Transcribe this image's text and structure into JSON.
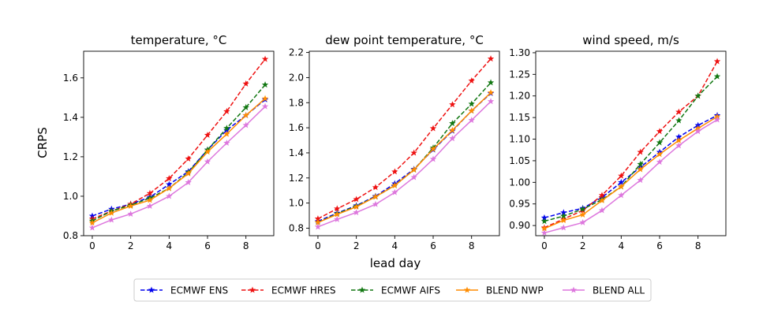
{
  "figure": {
    "ylabel": "CRPS",
    "xlabel": "lead day"
  },
  "legend": {
    "placement": "bottom-center",
    "entries": [
      {
        "name": "ECMWF ENS",
        "color": "#0000ee",
        "dashed": true
      },
      {
        "name": "ECMWF HRES",
        "color": "#ee1111",
        "dashed": true
      },
      {
        "name": "ECMWF AIFS",
        "color": "#117711",
        "dashed": true
      },
      {
        "name": "BLEND NWP",
        "color": "#ff8c00",
        "dashed": false
      },
      {
        "name": "BLEND ALL",
        "color": "#dd77dd",
        "dashed": false
      }
    ]
  },
  "chart_data": [
    {
      "type": "line",
      "title": "temperature, °C",
      "xlabel": "lead day",
      "ylabel": "CRPS",
      "x": [
        0,
        1,
        2,
        3,
        4,
        5,
        6,
        7,
        8,
        9
      ],
      "xlim": [
        -0.45,
        9.45
      ],
      "ylim": [
        0.8,
        1.735
      ],
      "xticks": [
        0,
        2,
        4,
        6,
        8
      ],
      "yticks": [
        0.8,
        1.0,
        1.2,
        1.4,
        1.6
      ],
      "ytick_labels": [
        "0.8",
        "1.0",
        "1.2",
        "1.4",
        "1.6"
      ],
      "series": [
        {
          "name": "ECMWF ENS",
          "values": [
            0.9,
            0.935,
            0.96,
            0.995,
            1.06,
            1.125,
            1.235,
            1.335,
            1.41,
            1.49
          ]
        },
        {
          "name": "ECMWF HRES",
          "values": [
            0.885,
            0.925,
            0.96,
            1.015,
            1.09,
            1.19,
            1.31,
            1.43,
            1.57,
            1.695
          ]
        },
        {
          "name": "ECMWF AIFS",
          "values": [
            0.875,
            0.925,
            0.955,
            0.99,
            1.04,
            1.12,
            1.235,
            1.345,
            1.45,
            1.565
          ]
        },
        {
          "name": "BLEND NWP",
          "values": [
            0.865,
            0.915,
            0.95,
            0.98,
            1.04,
            1.115,
            1.225,
            1.315,
            1.41,
            1.495
          ]
        },
        {
          "name": "BLEND ALL",
          "values": [
            0.84,
            0.88,
            0.91,
            0.95,
            1.0,
            1.07,
            1.175,
            1.27,
            1.36,
            1.455
          ]
        }
      ]
    },
    {
      "type": "line",
      "title": "dew point temperature, °C",
      "xlabel": "lead day",
      "ylabel": "",
      "x": [
        0,
        1,
        2,
        3,
        4,
        5,
        6,
        7,
        8,
        9
      ],
      "xlim": [
        -0.45,
        9.45
      ],
      "ylim": [
        0.74,
        2.21
      ],
      "xticks": [
        0,
        2,
        4,
        6,
        8
      ],
      "yticks": [
        0.8,
        1.0,
        1.2,
        1.4,
        1.6,
        1.8,
        2.0,
        2.2
      ],
      "ytick_labels": [
        "0.8",
        "1.0",
        "1.2",
        "1.4",
        "1.6",
        "1.8",
        "2.0",
        "2.2"
      ],
      "series": [
        {
          "name": "ECMWF ENS",
          "values": [
            0.855,
            0.92,
            0.98,
            1.055,
            1.155,
            1.27,
            1.425,
            1.575,
            1.735,
            1.875
          ]
        },
        {
          "name": "ECMWF HRES",
          "values": [
            0.875,
            0.955,
            1.03,
            1.125,
            1.25,
            1.4,
            1.595,
            1.785,
            1.975,
            2.15
          ]
        },
        {
          "name": "ECMWF AIFS",
          "values": [
            0.845,
            0.915,
            0.975,
            1.05,
            1.14,
            1.265,
            1.44,
            1.635,
            1.79,
            1.96
          ]
        },
        {
          "name": "BLEND NWP",
          "values": [
            0.845,
            0.91,
            0.97,
            1.05,
            1.14,
            1.265,
            1.43,
            1.58,
            1.735,
            1.88
          ]
        },
        {
          "name": "BLEND ALL",
          "values": [
            0.81,
            0.87,
            0.925,
            0.99,
            1.085,
            1.205,
            1.35,
            1.515,
            1.66,
            1.81
          ]
        }
      ]
    },
    {
      "type": "line",
      "title": "wind speed, m/s",
      "xlabel": "lead day",
      "ylabel": "",
      "x": [
        0,
        1,
        2,
        3,
        4,
        5,
        6,
        7,
        8,
        9
      ],
      "xlim": [
        -0.45,
        9.45
      ],
      "ylim": [
        0.8765,
        1.3035
      ],
      "xticks": [
        0,
        2,
        4,
        6,
        8
      ],
      "yticks": [
        0.9,
        0.95,
        1.0,
        1.05,
        1.1,
        1.15,
        1.2,
        1.25,
        1.3
      ],
      "ytick_labels": [
        "0.90",
        "0.95",
        "1.00",
        "1.05",
        "1.10",
        "1.15",
        "1.20",
        "1.25",
        "1.30"
      ],
      "series": [
        {
          "name": "ECMWF ENS",
          "values": [
            0.918,
            0.93,
            0.94,
            0.965,
            1.0,
            1.035,
            1.07,
            1.105,
            1.132,
            1.155
          ]
        },
        {
          "name": "ECMWF HRES",
          "values": [
            0.895,
            0.915,
            0.935,
            0.97,
            1.015,
            1.07,
            1.118,
            1.163,
            1.2,
            1.28
          ]
        },
        {
          "name": "ECMWF AIFS",
          "values": [
            0.91,
            0.922,
            0.938,
            0.96,
            0.99,
            1.042,
            1.092,
            1.143,
            1.2,
            1.245
          ]
        },
        {
          "name": "BLEND NWP",
          "values": [
            0.893,
            0.912,
            0.925,
            0.958,
            0.99,
            1.03,
            1.065,
            1.097,
            1.125,
            1.152
          ]
        },
        {
          "name": "BLEND ALL",
          "values": [
            0.883,
            0.895,
            0.907,
            0.935,
            0.97,
            1.005,
            1.047,
            1.085,
            1.118,
            1.145
          ]
        }
      ]
    }
  ]
}
